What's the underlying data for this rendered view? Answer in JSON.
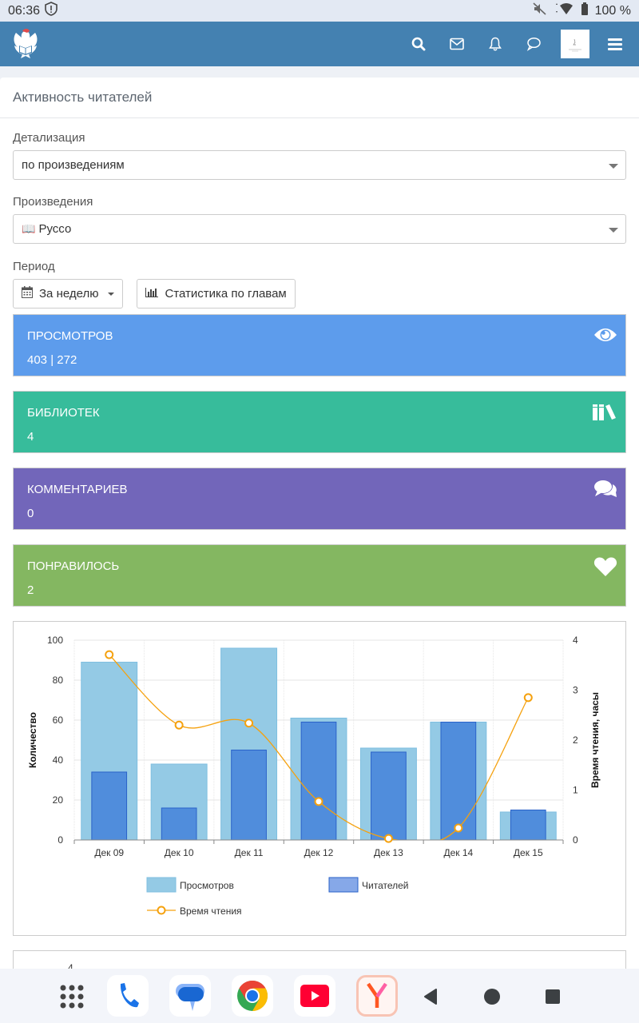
{
  "status_bar": {
    "time": "06:36",
    "battery": "100 %",
    "icons": [
      "shield-alert-icon",
      "mute-icon",
      "wifi-icon",
      "battery-icon"
    ]
  },
  "topbar": {
    "logo": "eagle-book-logo",
    "icons": [
      "search-icon",
      "mail-icon",
      "bell-icon",
      "chat-icon",
      "avatar",
      "hamburger-menu-icon"
    ]
  },
  "panel": {
    "title": "Активность читателей"
  },
  "form": {
    "detail_label": "Детализация",
    "detail_value": "по произведениям",
    "works_label": "Произведения",
    "works_icon": "📖",
    "works_value": "Руссо",
    "period_label": "Период",
    "period_button": "За неделю",
    "chapters_button": "Статистика по главам"
  },
  "stats": [
    {
      "title": "ПРОСМОТРОВ",
      "value": "403 | 272",
      "icon": "eye-icon",
      "color": "#5d9cec"
    },
    {
      "title": "БИБЛИОТЕК",
      "value": "4",
      "icon": "books-icon",
      "color": "#37bc9b"
    },
    {
      "title": "КОММЕНТАРИЕВ",
      "value": "0",
      "icon": "comments-icon",
      "color": "#7266ba"
    },
    {
      "title": "ПОНРАВИЛОСЬ",
      "value": "2",
      "icon": "heart-icon",
      "color": "#84b761"
    }
  ],
  "chart_data": {
    "type": "bar",
    "categories": [
      "Дек 09",
      "Дек 10",
      "Дек 11",
      "Дек 12",
      "Дек 13",
      "Дек 14",
      "Дек 15"
    ],
    "series": [
      {
        "name": "Просмотров",
        "type": "bar",
        "axis": "left",
        "color": "#94cae5",
        "values": [
          89,
          38,
          96,
          61,
          46,
          59,
          14
        ]
      },
      {
        "name": "Читателей",
        "type": "bar",
        "axis": "left",
        "color": "#508ddc",
        "values": [
          34,
          16,
          45,
          59,
          44,
          59,
          15
        ]
      },
      {
        "name": "Время чтения",
        "type": "line",
        "axis": "right",
        "color": "#f5a10e",
        "values": [
          3.71,
          2.3,
          2.34,
          0.77,
          0.03,
          0.24,
          2.85
        ]
      }
    ],
    "ylabel": "Количество",
    "ylabel_right": "Время чтения, часы",
    "ylim": [
      0,
      100
    ],
    "ylim_right": [
      0,
      4
    ],
    "yticks": [
      0,
      20,
      40,
      60,
      80,
      100
    ],
    "yticks_right": [
      0,
      1,
      2,
      3,
      4
    ],
    "grid": true,
    "legend_position": "bottom"
  },
  "second_chart_partial": {
    "visible_tick": "4"
  },
  "dock": {
    "apps": [
      "app-drawer-icon",
      "phone-app-icon",
      "messages-app-icon",
      "chrome-app-icon",
      "youtube-app-icon",
      "yandex-browser-app-icon"
    ],
    "nav": [
      "back-icon",
      "home-icon",
      "recents-icon"
    ]
  }
}
